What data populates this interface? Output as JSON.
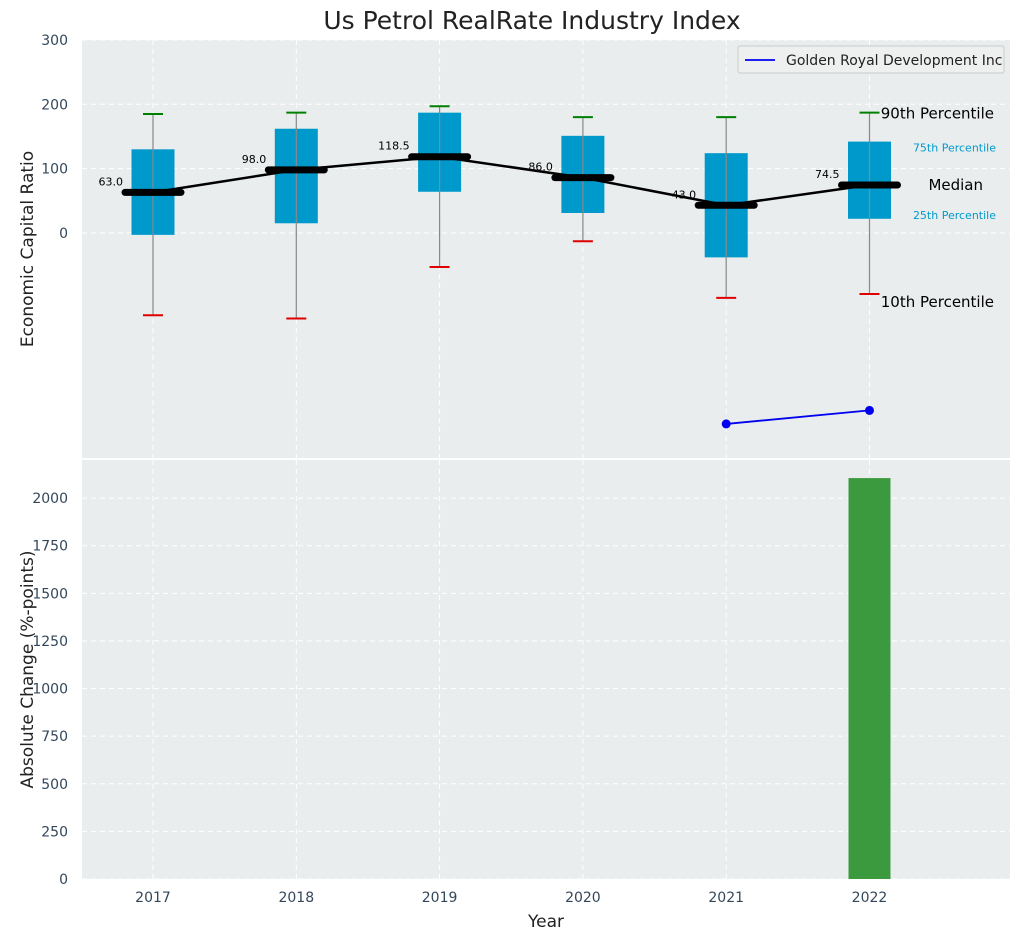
{
  "colors": {
    "panel_bg": "#eaeded",
    "box_fill": "#0099cc",
    "whisker_line": "#888888",
    "cap_high": "#008000",
    "cap_low": "#e00000",
    "median_mark": "#000000",
    "company_line": "#0000ee",
    "bar_fill": "#3a9a3d",
    "pct_small_text": "#0099cc",
    "grid": "#ffffff"
  },
  "chart_data": [
    {
      "type": "box",
      "title": "Us Petrol RealRate Industry Index",
      "ylabel": "Economic Capital Ratio",
      "xlabel": "",
      "categories": [
        "2017",
        "2018",
        "2019",
        "2020",
        "2021",
        "2022"
      ],
      "ylim": [
        -350,
        300
      ],
      "yticks": [
        0,
        100,
        200,
        300
      ],
      "grid": true,
      "legend_position": "top-right",
      "boxes": [
        {
          "year": "2017",
          "p10": -128,
          "q1": -3,
          "median": 63.0,
          "q3": 130,
          "p90": 185
        },
        {
          "year": "2018",
          "p10": -133,
          "q1": 15,
          "median": 98.0,
          "q3": 162,
          "p90": 187
        },
        {
          "year": "2019",
          "p10": -53,
          "q1": 64,
          "median": 118.5,
          "q3": 187,
          "p90": 197
        },
        {
          "year": "2020",
          "p10": -13,
          "q1": 31,
          "median": 86.0,
          "q3": 151,
          "p90": 180
        },
        {
          "year": "2021",
          "p10": -101,
          "q1": -38,
          "median": 43.0,
          "q3": 124,
          "p90": 180
        },
        {
          "year": "2022",
          "p10": -95,
          "q1": 22,
          "median": 74.5,
          "q3": 142,
          "p90": 187
        }
      ],
      "median_labels": [
        "63.0",
        "98.0",
        "118.5",
        "86.0",
        "43.0",
        "74.5"
      ],
      "series": [
        {
          "name": "Golden Royal Development Inc",
          "x": [
            "2021",
            "2022"
          ],
          "values": [
            -297,
            -276
          ]
        }
      ],
      "annotations": {
        "p90": "90th Percentile",
        "q3": "75th Percentile",
        "median": "Median",
        "q1": "25th Percentile",
        "p10": "10th Percentile"
      }
    },
    {
      "type": "bar",
      "xlabel": "Year",
      "ylabel": "Absolute Change (%-points)",
      "categories": [
        "2017",
        "2018",
        "2019",
        "2020",
        "2021",
        "2022"
      ],
      "values": [
        null,
        null,
        null,
        null,
        null,
        2105
      ],
      "ylim": [
        0,
        2200
      ],
      "yticks": [
        0,
        250,
        500,
        750,
        1000,
        1250,
        1500,
        1750,
        2000
      ],
      "grid": true
    }
  ]
}
